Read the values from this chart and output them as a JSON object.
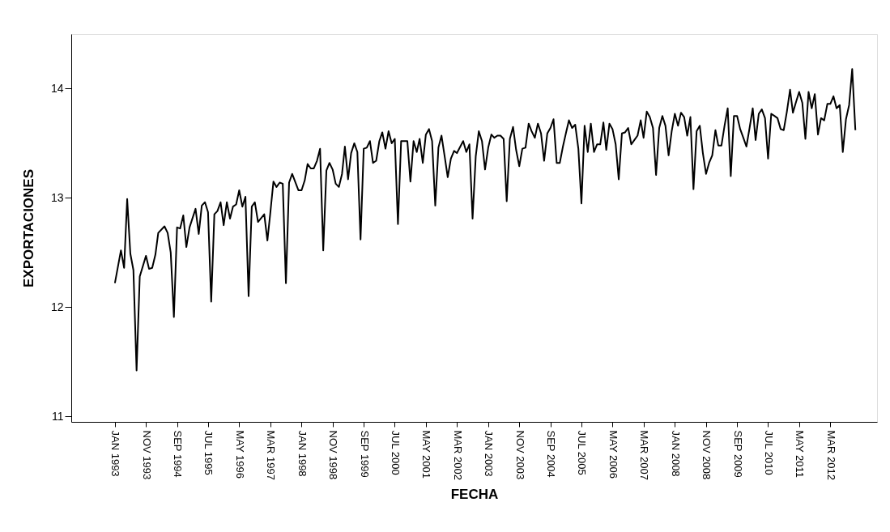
{
  "chart_data": {
    "type": "line",
    "xlabel": "FECHA",
    "ylabel": "EXPORTACIONES",
    "xlim": [
      "1991-11",
      "2013-06"
    ],
    "ylim": [
      10.95,
      14.5
    ],
    "yticks": [
      11,
      12,
      13,
      14
    ],
    "xticks": [
      {
        "value": "1993-01",
        "label": "JAN 1993"
      },
      {
        "value": "1993-11",
        "label": "NOV 1993"
      },
      {
        "value": "1994-09",
        "label": "SEP 1994"
      },
      {
        "value": "1995-07",
        "label": "JUL 1995"
      },
      {
        "value": "1996-05",
        "label": "MAY 1996"
      },
      {
        "value": "1997-03",
        "label": "MAR 1997"
      },
      {
        "value": "1998-01",
        "label": "JAN 1998"
      },
      {
        "value": "1998-11",
        "label": "NOV 1998"
      },
      {
        "value": "1999-09",
        "label": "SEP 1999"
      },
      {
        "value": "2000-07",
        "label": "JUL 2000"
      },
      {
        "value": "2001-05",
        "label": "MAY 2001"
      },
      {
        "value": "2002-03",
        "label": "MAR 2002"
      },
      {
        "value": "2003-01",
        "label": "JAN 2003"
      },
      {
        "value": "2003-11",
        "label": "NOV 2003"
      },
      {
        "value": "2004-09",
        "label": "SEP 2004"
      },
      {
        "value": "2005-07",
        "label": "JUL 2005"
      },
      {
        "value": "2006-05",
        "label": "MAY 2006"
      },
      {
        "value": "2007-03",
        "label": "MAR 2007"
      },
      {
        "value": "2008-01",
        "label": "JAN 2008"
      },
      {
        "value": "2008-11",
        "label": "NOV 2008"
      },
      {
        "value": "2009-09",
        "label": "SEP 2009"
      },
      {
        "value": "2010-07",
        "label": "JUL 2010"
      },
      {
        "value": "2011-05",
        "label": "MAY 2011"
      },
      {
        "value": "2012-03",
        "label": "MAR 2012"
      }
    ],
    "grid": false,
    "marker": "none",
    "line_style": "solid",
    "series": [
      {
        "color": "#000000",
        "x": [
          "1993-01",
          "1993-03",
          "1993-04",
          "1993-05",
          "1993-06",
          "1993-07",
          "1993-08",
          "1993-09",
          "1993-11",
          "1993-12",
          "1994-01",
          "1994-02",
          "1994-03",
          "1994-05",
          "1994-06",
          "1994-07",
          "1994-08",
          "1994-09",
          "1994-10",
          "1994-11",
          "1994-12",
          "1995-01",
          "1995-03",
          "1995-04",
          "1995-05",
          "1995-06",
          "1995-07",
          "1995-08",
          "1995-09",
          "1995-10",
          "1995-11",
          "1995-12",
          "1996-01",
          "1996-02",
          "1996-03",
          "1996-04",
          "1996-05",
          "1996-06",
          "1996-07",
          "1996-08",
          "1996-09",
          "1996-10",
          "1996-11",
          "1997-01",
          "1997-02",
          "1997-03",
          "1997-04",
          "1997-05",
          "1997-06",
          "1997-07",
          "1997-08",
          "1997-09",
          "1997-10",
          "1997-12",
          "1998-01",
          "1998-02",
          "1998-03",
          "1998-04",
          "1998-05",
          "1998-06",
          "1998-07",
          "1998-08",
          "1998-09",
          "1998-10",
          "1998-11",
          "1998-12",
          "1999-01",
          "1999-02",
          "1999-03",
          "1999-04",
          "1999-05",
          "1999-06",
          "1999-07",
          "1999-08",
          "1999-09",
          "1999-10",
          "1999-11",
          "1999-12",
          "2000-01",
          "2000-02",
          "2000-03",
          "2000-04",
          "2000-05",
          "2000-06",
          "2000-07",
          "2000-08",
          "2000-09",
          "2000-11",
          "2000-12",
          "2001-01",
          "2001-02",
          "2001-03",
          "2001-04",
          "2001-05",
          "2001-06",
          "2001-07",
          "2001-08",
          "2001-09",
          "2001-10",
          "2001-11",
          "2001-12",
          "2002-01",
          "2002-02",
          "2002-03",
          "2002-05",
          "2002-06",
          "2002-07",
          "2002-08",
          "2002-09",
          "2002-10",
          "2002-11",
          "2002-12",
          "2003-01",
          "2003-02",
          "2003-03",
          "2003-04",
          "2003-05",
          "2003-06",
          "2003-07",
          "2003-08",
          "2003-09",
          "2003-10",
          "2003-11",
          "2003-12",
          "2004-01",
          "2004-02",
          "2004-03",
          "2004-04",
          "2004-05",
          "2004-06",
          "2004-07",
          "2004-08",
          "2004-09",
          "2004-10",
          "2004-11",
          "2004-12",
          "2005-01",
          "2005-02",
          "2005-03",
          "2005-04",
          "2005-05",
          "2005-06",
          "2005-07",
          "2005-08",
          "2005-09",
          "2005-10",
          "2005-11",
          "2005-12",
          "2006-01",
          "2006-02",
          "2006-03",
          "2006-04",
          "2006-05",
          "2006-06",
          "2006-07",
          "2006-08",
          "2006-09",
          "2006-10",
          "2006-11",
          "2006-12",
          "2007-01",
          "2007-02",
          "2007-03",
          "2007-04",
          "2007-05",
          "2007-06",
          "2007-07",
          "2007-08",
          "2007-09",
          "2007-10",
          "2007-11",
          "2007-12",
          "2008-01",
          "2008-02",
          "2008-03",
          "2008-04",
          "2008-05",
          "2008-06",
          "2008-07",
          "2008-08",
          "2008-09",
          "2008-10",
          "2008-11",
          "2008-12",
          "2009-01",
          "2009-02",
          "2009-03",
          "2009-04",
          "2009-05",
          "2009-06",
          "2009-07",
          "2009-08",
          "2009-09",
          "2009-10",
          "2009-11",
          "2009-12",
          "2010-01",
          "2010-02",
          "2010-03",
          "2010-04",
          "2010-05",
          "2010-06",
          "2010-07",
          "2010-08",
          "2010-09",
          "2010-10",
          "2010-11",
          "2010-12",
          "2011-01",
          "2011-02",
          "2011-03",
          "2011-04",
          "2011-05",
          "2011-06",
          "2011-07",
          "2011-08",
          "2011-09",
          "2011-10",
          "2011-11",
          "2011-12",
          "2012-01",
          "2012-02",
          "2012-03",
          "2012-04",
          "2012-05",
          "2012-06",
          "2012-07",
          "2012-08",
          "2012-09",
          "2012-10",
          "2012-11"
        ],
        "values": [
          12.22,
          12.52,
          12.36,
          12.99,
          12.49,
          12.34,
          11.42,
          12.28,
          12.47,
          12.35,
          12.36,
          12.48,
          12.68,
          12.74,
          12.68,
          12.5,
          11.91,
          12.73,
          12.72,
          12.84,
          12.55,
          12.73,
          12.9,
          12.67,
          12.93,
          12.96,
          12.87,
          12.05,
          12.85,
          12.88,
          12.96,
          12.75,
          12.96,
          12.81,
          12.92,
          12.94,
          13.07,
          12.92,
          13.01,
          12.1,
          12.92,
          12.96,
          12.78,
          12.85,
          12.61,
          12.86,
          13.15,
          13.1,
          13.14,
          13.13,
          12.22,
          13.14,
          13.22,
          13.07,
          13.07,
          13.16,
          13.31,
          13.27,
          13.27,
          13.34,
          13.45,
          12.52,
          13.25,
          13.32,
          13.26,
          13.13,
          13.1,
          13.22,
          13.47,
          13.17,
          13.41,
          13.5,
          13.42,
          12.62,
          13.45,
          13.46,
          13.52,
          13.32,
          13.34,
          13.52,
          13.6,
          13.45,
          13.61,
          13.5,
          13.54,
          12.76,
          13.52,
          13.52,
          13.15,
          13.52,
          13.42,
          13.54,
          13.32,
          13.58,
          13.63,
          13.52,
          12.93,
          13.46,
          13.57,
          13.38,
          13.19,
          13.36,
          13.43,
          13.41,
          13.52,
          13.42,
          13.49,
          12.81,
          13.38,
          13.61,
          13.52,
          13.26,
          13.46,
          13.58,
          13.55,
          13.57,
          13.57,
          13.54,
          12.97,
          13.54,
          13.65,
          13.44,
          13.29,
          13.45,
          13.46,
          13.68,
          13.61,
          13.55,
          13.68,
          13.59,
          13.34,
          13.59,
          13.64,
          13.72,
          13.32,
          13.32,
          13.47,
          13.6,
          13.71,
          13.64,
          13.67,
          13.45,
          12.95,
          13.66,
          13.42,
          13.68,
          13.42,
          13.49,
          13.49,
          13.69,
          13.44,
          13.68,
          13.63,
          13.49,
          13.17,
          13.59,
          13.6,
          13.64,
          13.49,
          13.53,
          13.57,
          13.71,
          13.55,
          13.79,
          13.74,
          13.64,
          13.21,
          13.64,
          13.75,
          13.66,
          13.39,
          13.61,
          13.77,
          13.66,
          13.78,
          13.74,
          13.57,
          13.74,
          13.08,
          13.61,
          13.66,
          13.41,
          13.22,
          13.32,
          13.39,
          13.62,
          13.48,
          13.48,
          13.66,
          13.82,
          13.2,
          13.75,
          13.75,
          13.63,
          13.55,
          13.47,
          13.64,
          13.82,
          13.53,
          13.77,
          13.81,
          13.73,
          13.36,
          13.77,
          13.75,
          13.73,
          13.63,
          13.62,
          13.79,
          13.99,
          13.78,
          13.88,
          13.97,
          13.87,
          13.54,
          13.97,
          13.82,
          13.95,
          13.58,
          13.73,
          13.71,
          13.86,
          13.86,
          13.93,
          13.82,
          13.85,
          13.42,
          13.72,
          13.85,
          14.18,
          13.62
        ]
      }
    ]
  }
}
